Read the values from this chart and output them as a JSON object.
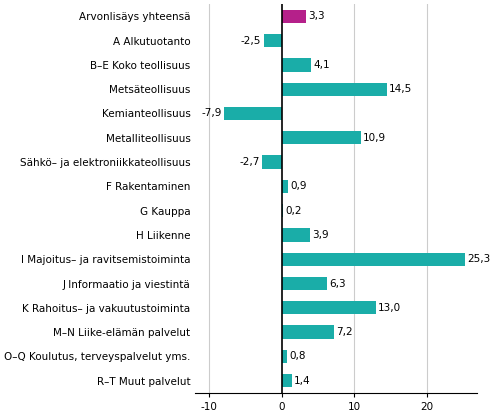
{
  "categories": [
    "Arvonlisäys yhteensä",
    "A Alkutuotanto",
    "B–E Koko teollisuus",
    "Metsäteollisuus",
    "Kemianteollisuus",
    "Metalliteollisuus",
    "Sähkö– ja elektroniikkateollisuus",
    "F Rakentaminen",
    "G Kauppa",
    "H Liikenne",
    "I Majoitus– ja ravitsemistoiminta",
    "J Informaatio ja viestintä",
    "K Rahoitus– ja vakuutustoiminta",
    "M–N Liike-elämän palvelut",
    "O–Q Koulutus, terveyspalvelut yms.",
    "R–T Muut palvelut"
  ],
  "values": [
    3.3,
    -2.5,
    4.1,
    14.5,
    -7.9,
    10.9,
    -2.7,
    0.9,
    0.2,
    3.9,
    25.3,
    6.3,
    13.0,
    7.2,
    0.8,
    1.4
  ],
  "bar_colors": [
    "#b5208a",
    "#1aada8",
    "#1aada8",
    "#1aada8",
    "#1aada8",
    "#1aada8",
    "#1aada8",
    "#1aada8",
    "#1aada8",
    "#1aada8",
    "#1aada8",
    "#1aada8",
    "#1aada8",
    "#1aada8",
    "#1aada8",
    "#1aada8"
  ],
  "xlim": [
    -12,
    27
  ],
  "xticks": [
    -10,
    0,
    10,
    20
  ],
  "background_color": "#ffffff",
  "label_fontsize": 7.5,
  "value_fontsize": 7.5,
  "grid_color": "#cccccc",
  "bar_height": 0.55
}
